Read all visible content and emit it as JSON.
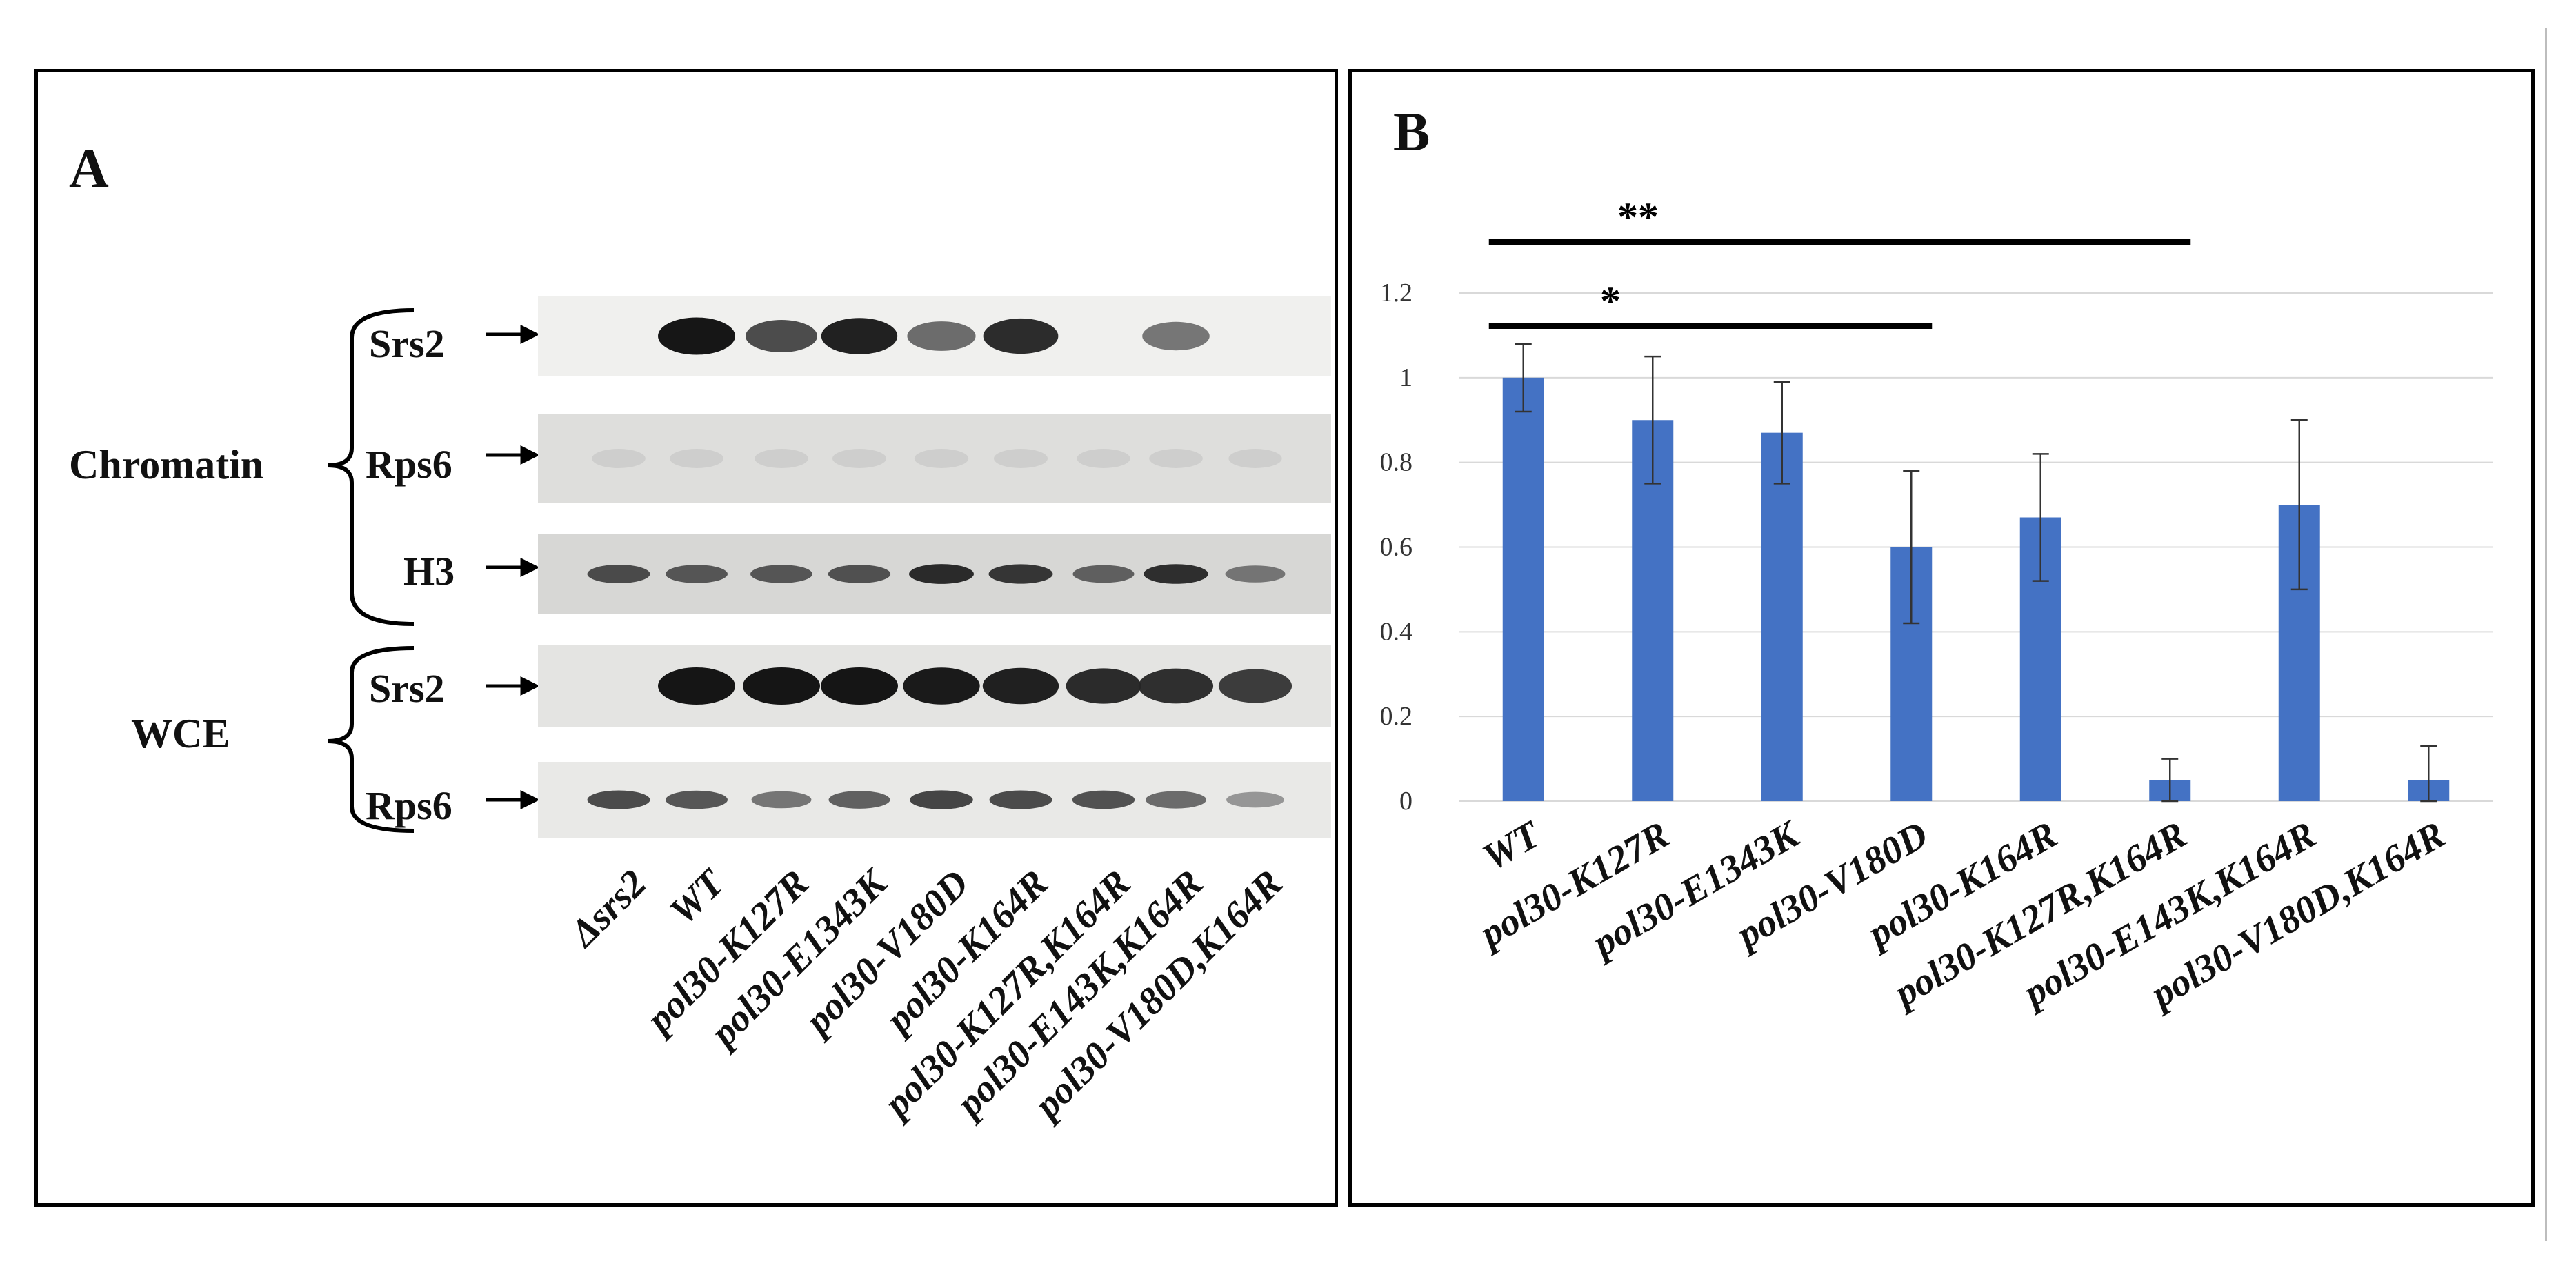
{
  "panel_a": {
    "label": "A",
    "groups": [
      "Chromatin",
      "WCE"
    ],
    "rows": [
      {
        "label": "Srs2",
        "group": "Chromatin",
        "intensity": [
          0,
          1.0,
          0.75,
          0.95,
          0.6,
          0.9,
          0,
          0.55,
          0
        ]
      },
      {
        "label": "Rps6",
        "group": "Chromatin",
        "intensity": [
          0.08,
          0.1,
          0.08,
          0.1,
          0.12,
          0.1,
          0.06,
          0.08,
          0.06
        ]
      },
      {
        "label": "H3",
        "group": "Chromatin",
        "intensity": [
          0.75,
          0.7,
          0.7,
          0.72,
          0.9,
          0.85,
          0.65,
          0.88,
          0.55
        ]
      },
      {
        "label": "Srs2",
        "group": "WCE",
        "intensity": [
          0,
          1.0,
          1.0,
          1.0,
          0.98,
          0.95,
          0.9,
          0.88,
          0.82
        ]
      },
      {
        "label": "Rps6",
        "group": "WCE",
        "intensity": [
          0.75,
          0.7,
          0.55,
          0.65,
          0.78,
          0.75,
          0.72,
          0.6,
          0.4
        ]
      }
    ],
    "lanes": [
      "Δsrs2",
      "WT",
      "pol30-K127R",
      "pol30-E1343K",
      "pol30-V180D",
      "pol30-K164R",
      "pol30-K127R,K164R",
      "pol30-E143K,K164R",
      "pol30-V180D,K164R"
    ]
  },
  "panel_b": {
    "label": "B",
    "chart_data": {
      "type": "bar",
      "categories": [
        "WT",
        "pol30-K127R",
        "pol30-E1343K",
        "pol30-V180D",
        "pol30-K164R",
        "pol30-K127R,K164R",
        "pol30-E143K,K164R",
        "pol30-V180D,K164R"
      ],
      "values": [
        1.0,
        0.9,
        0.87,
        0.6,
        0.67,
        0.05,
        0.7,
        0.05
      ],
      "errors": [
        0.08,
        0.15,
        0.12,
        0.18,
        0.15,
        0.05,
        0.2,
        0.08
      ],
      "ylim": [
        0,
        1.2
      ],
      "yticks": [
        "0",
        "0.2",
        "0.4",
        "0.6",
        "0.8",
        "1",
        "1.2"
      ],
      "grid": true,
      "bar_color": "#4472c4",
      "significance": [
        {
          "label": "**",
          "from": "WT",
          "to": "pol30-K127R,K164R"
        },
        {
          "label": "*",
          "from": "WT",
          "to": "pol30-V180D"
        }
      ]
    }
  }
}
